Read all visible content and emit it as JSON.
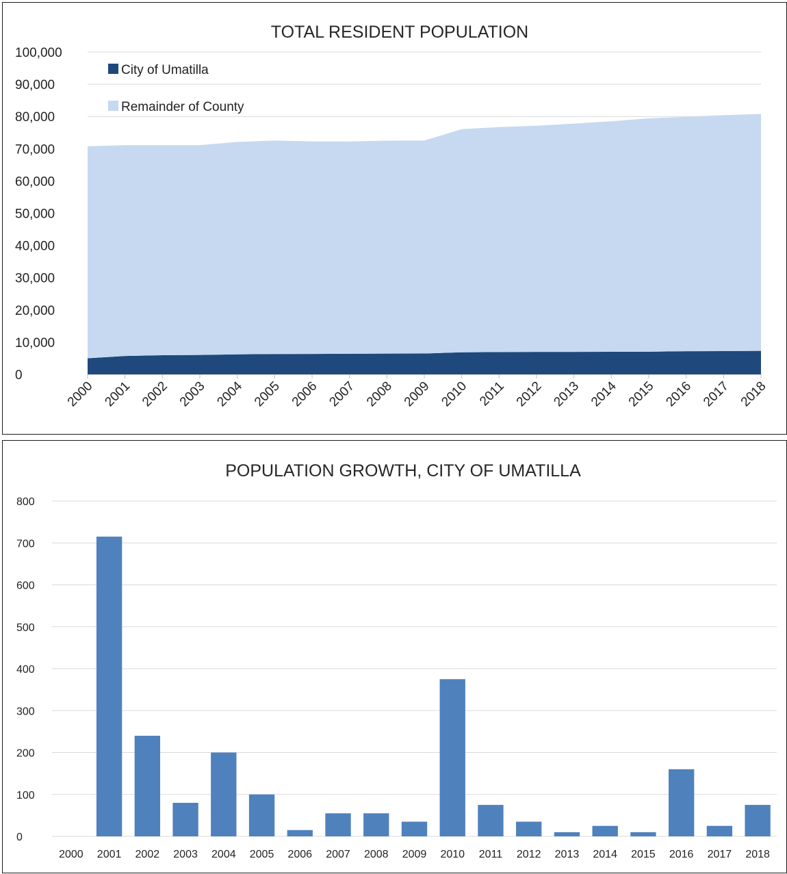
{
  "chart_data": [
    {
      "type": "area",
      "stacked": true,
      "title": "TOTAL RESIDENT POPULATION",
      "categories": [
        "2000",
        "2001",
        "2002",
        "2003",
        "2004",
        "2005",
        "2006",
        "2007",
        "2008",
        "2009",
        "2010",
        "2011",
        "2012",
        "2013",
        "2014",
        "2015",
        "2016",
        "2017",
        "2018"
      ],
      "series": [
        {
          "name": "City of Umatilla",
          "color": "#1f497d",
          "values": [
            4980,
            5700,
            5940,
            6020,
            6220,
            6320,
            6340,
            6390,
            6450,
            6480,
            6860,
            6930,
            6970,
            6980,
            7010,
            7020,
            7180,
            7210,
            7290
          ]
        },
        {
          "name": "Remainder of County",
          "color": "#c6d9f0",
          "values": [
            65770,
            65410,
            65170,
            65090,
            65890,
            66200,
            65920,
            65860,
            66050,
            66050,
            69200,
            69800,
            70150,
            70800,
            71500,
            72400,
            72700,
            73200,
            73500
          ]
        }
      ],
      "ylim": [
        0,
        100000
      ],
      "yticks": [
        "0",
        "10,000",
        "20,000",
        "30,000",
        "40,000",
        "50,000",
        "60,000",
        "70,000",
        "80,000",
        "90,000",
        "100,000"
      ],
      "legend": "top-left",
      "grid": true
    },
    {
      "type": "bar",
      "title": "POPULATION GROWTH, CITY OF UMATILLA",
      "categories": [
        "2000",
        "2001",
        "2002",
        "2003",
        "2004",
        "2005",
        "2006",
        "2007",
        "2008",
        "2009",
        "2010",
        "2011",
        "2012",
        "2013",
        "2014",
        "2015",
        "2016",
        "2017",
        "2018"
      ],
      "values": [
        0,
        715,
        240,
        80,
        200,
        100,
        15,
        55,
        55,
        35,
        375,
        75,
        35,
        10,
        25,
        10,
        160,
        25,
        75
      ],
      "color": "#4f81bd",
      "ylim": [
        0,
        800
      ],
      "yticks": [
        "0",
        "100",
        "200",
        "300",
        "400",
        "500",
        "600",
        "700",
        "800"
      ],
      "grid": true
    }
  ]
}
